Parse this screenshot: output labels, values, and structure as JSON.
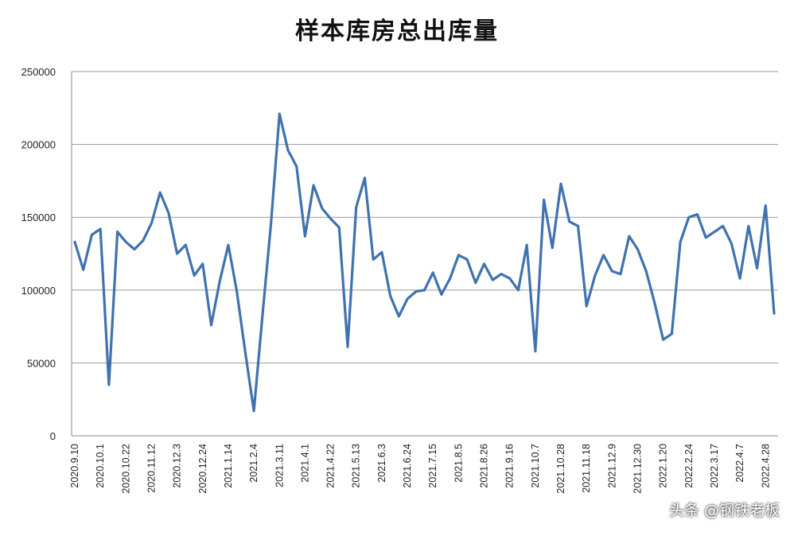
{
  "chart_data": {
    "type": "line",
    "title": "样本库房总出库量",
    "xlabel": "",
    "ylabel": "",
    "ylim": [
      0,
      250000
    ],
    "yticks": [
      "0",
      "50000",
      "100000",
      "150000",
      "200000",
      "250000"
    ],
    "grid": true,
    "legend": "none",
    "x_tick_labels": [
      "2020.9.10",
      "2020.10.1",
      "2020.10.22",
      "2020.11.12",
      "2020.12.3",
      "2020.12.24",
      "2021.1.14",
      "2021.2.4",
      "2021.3.11",
      "2021.4.1",
      "2021.4.22",
      "2021.5.13",
      "2021.6.3",
      "2021.6.24",
      "2021.7.15",
      "2021.8.5",
      "2021.8.26",
      "2021.9.16",
      "2021.10.7",
      "2021.10.28",
      "2021.11.18",
      "2021.12.9",
      "2021.12.30",
      "2022.1.20",
      "2022.2.24",
      "2022.3.17",
      "2022.4.7",
      "2022.4.28"
    ],
    "series": [
      {
        "color": "#3f72af",
        "values": [
          133000,
          114000,
          138000,
          142000,
          35000,
          140000,
          133000,
          128000,
          134000,
          146000,
          167000,
          153000,
          125000,
          131000,
          110000,
          118000,
          76000,
          106000,
          131000,
          99000,
          57000,
          17000,
          82000,
          145000,
          221000,
          196000,
          185000,
          137000,
          172000,
          156000,
          149000,
          143000,
          61000,
          157000,
          177000,
          121000,
          126000,
          96000,
          82000,
          94000,
          99000,
          100000,
          112000,
          97000,
          108000,
          124000,
          121000,
          105000,
          118000,
          107000,
          111000,
          108000,
          100000,
          131000,
          58000,
          162000,
          129000,
          173000,
          147000,
          144000,
          89000,
          110000,
          124000,
          113000,
          111000,
          137000,
          128000,
          113000,
          91000,
          66000,
          70000,
          133000,
          150000,
          152000,
          136000,
          140000,
          144000,
          132000,
          108000,
          144000,
          115000,
          158000,
          84000
        ]
      }
    ]
  },
  "watermark": "头条 @钢铁老板"
}
